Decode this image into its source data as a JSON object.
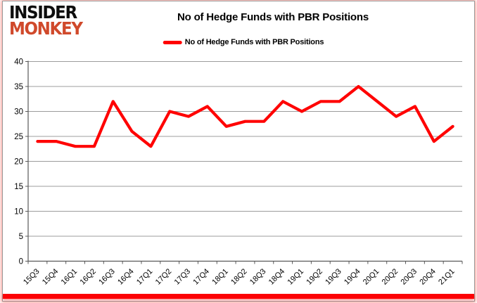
{
  "logo": {
    "line1": "INSIDER",
    "line2": "MONKEY"
  },
  "header": {
    "title": "No of Hedge Funds with PBR Positions"
  },
  "legend": {
    "label": "No of Hedge Funds with PBR Positions",
    "swatch_color": "#ff0000"
  },
  "chart_data": {
    "type": "line",
    "title": "No of Hedge Funds with PBR Positions",
    "categories": [
      "15Q3",
      "15Q4",
      "16Q1",
      "16Q2",
      "16Q3",
      "16Q4",
      "17Q1",
      "17Q2",
      "17Q3",
      "17Q4",
      "18Q1",
      "18Q2",
      "18Q3",
      "18Q4",
      "19Q1",
      "19Q2",
      "19Q3",
      "19Q4",
      "20Q1",
      "20Q2",
      "20Q3",
      "20Q4",
      "21Q1"
    ],
    "series": [
      {
        "name": "No of Hedge Funds with PBR Positions",
        "color": "#ff0000",
        "values": [
          24,
          24,
          23,
          23,
          32,
          26,
          23,
          30,
          29,
          31,
          27,
          28,
          28,
          32,
          30,
          32,
          32,
          35,
          32,
          29,
          31,
          24,
          27
        ]
      }
    ],
    "ylim": [
      0,
      40
    ],
    "ytick_step": 5,
    "yticks": [
      0,
      5,
      10,
      15,
      20,
      25,
      30,
      35,
      40
    ],
    "grid": true,
    "legend_position": "top",
    "colors": {
      "gridline": "#9c9c9c",
      "axis": "#595959",
      "label": "#000000"
    }
  }
}
